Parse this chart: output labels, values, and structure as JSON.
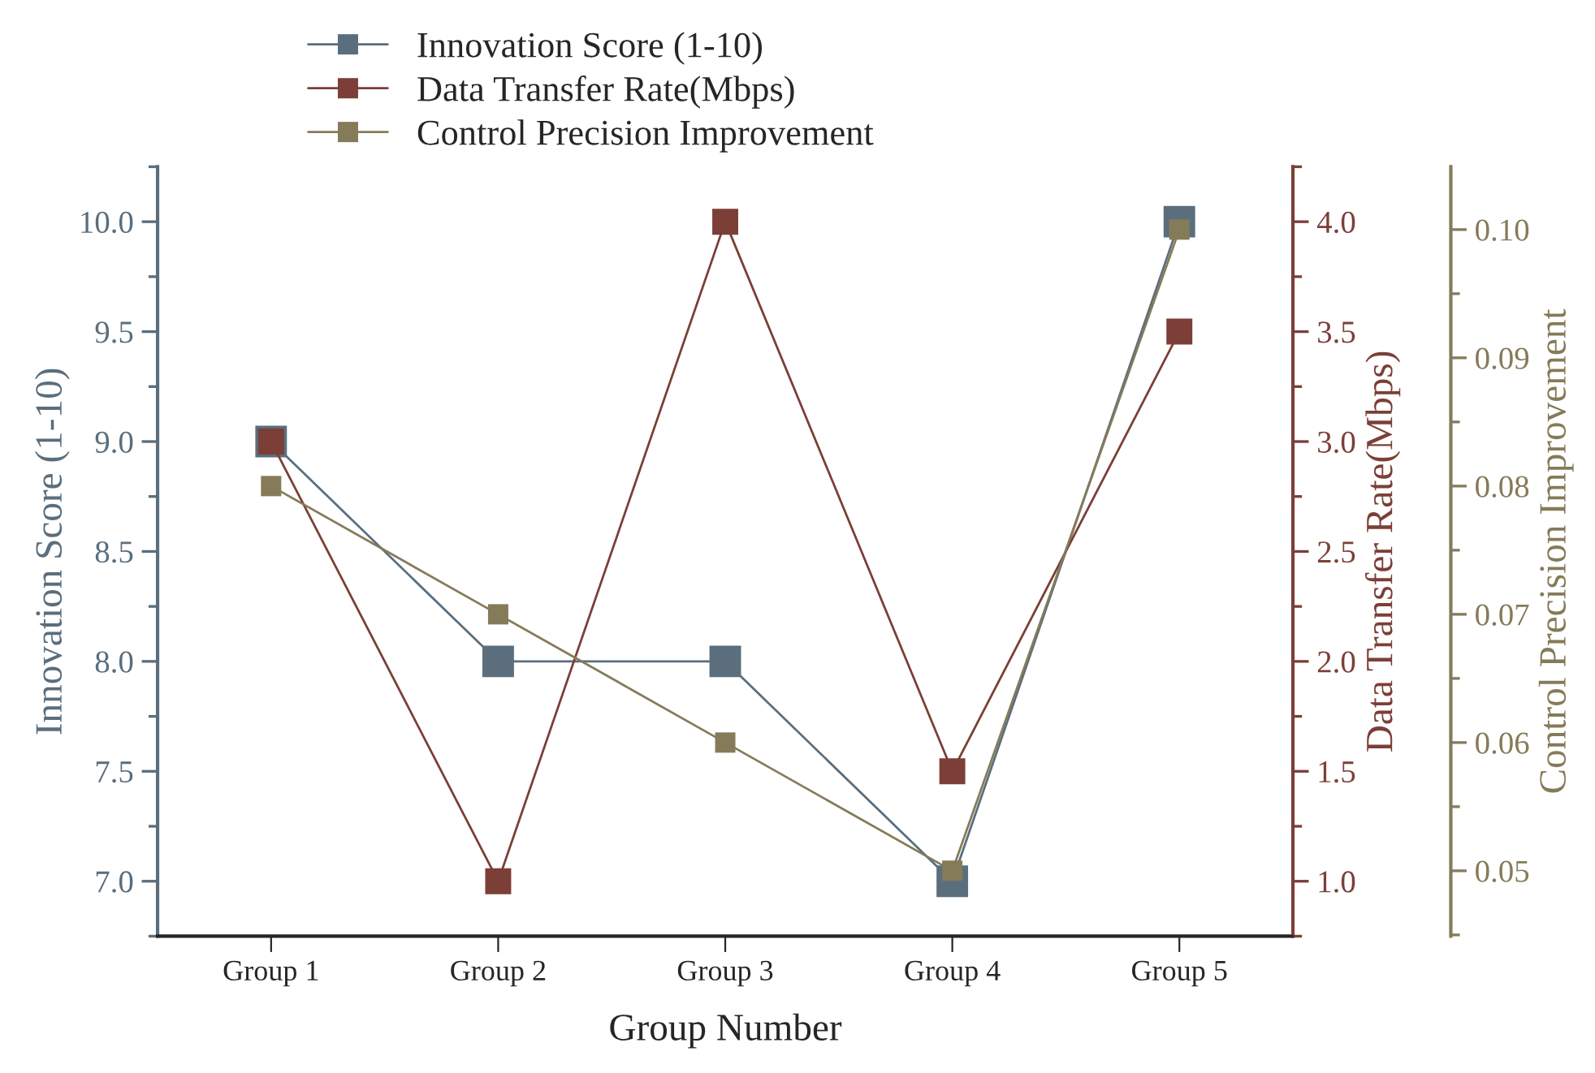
{
  "chart_data": {
    "type": "line",
    "xlabel": "Group Number",
    "ylabel": "Innovation Score (1-10)",
    "y2label": "Data Transfer Rate(Mbps)",
    "y3label": "Control Precision Improvement",
    "categories": [
      "Group 1",
      "Group 2",
      "Group 3",
      "Group 4",
      "Group 5"
    ],
    "series": [
      {
        "name": "Innovation Score (1-10)",
        "color": "#5a6e7d",
        "values": [
          9.0,
          8.0,
          8.0,
          7.0,
          10.0
        ]
      },
      {
        "name": "Data Transfer Rate(Mbps)",
        "color": "#7b3f37",
        "values": [
          3.0,
          1.0,
          4.0,
          1.5,
          3.5
        ],
        "axis": "y2"
      },
      {
        "name": "Control Precision Improvement",
        "color": "#857b58",
        "values": [
          0.08,
          0.07,
          0.06,
          0.05,
          0.1
        ],
        "axis": "y3"
      }
    ],
    "ylim": [
      6.75,
      10.25
    ],
    "yticks": [
      {
        "value": 7,
        "label": "7.0"
      },
      {
        "value": 7.5,
        "label": "7.5"
      },
      {
        "value": 8,
        "label": "8.0"
      },
      {
        "value": 8.5,
        "label": "8.5"
      },
      {
        "value": 9,
        "label": "9.0"
      },
      {
        "value": 9.5,
        "label": "9.5"
      },
      {
        "value": 10,
        "label": "10.0"
      }
    ],
    "y2lim": [
      0.75,
      4.25
    ],
    "y2ticks": [
      {
        "value": 1,
        "label": "1.0"
      },
      {
        "value": 1.5,
        "label": "1.5"
      },
      {
        "value": 2,
        "label": "2.0"
      },
      {
        "value": 2.5,
        "label": "2.5"
      },
      {
        "value": 3,
        "label": "3.0"
      },
      {
        "value": 3.5,
        "label": "3.5"
      },
      {
        "value": 4,
        "label": "4.0"
      }
    ],
    "y3lim": [
      0.0449,
      0.1049
    ],
    "y3ticks": [
      {
        "value": 0.05,
        "label": "0.05"
      },
      {
        "value": 0.06,
        "label": "0.06"
      },
      {
        "value": 0.07,
        "label": "0.07"
      },
      {
        "value": 0.08,
        "label": "0.08"
      },
      {
        "value": 0.09,
        "label": "0.09"
      },
      {
        "value": 0.1,
        "label": "0.10"
      }
    ],
    "legend": "top",
    "grid": false,
    "marker": "square",
    "line_style": "solid"
  }
}
